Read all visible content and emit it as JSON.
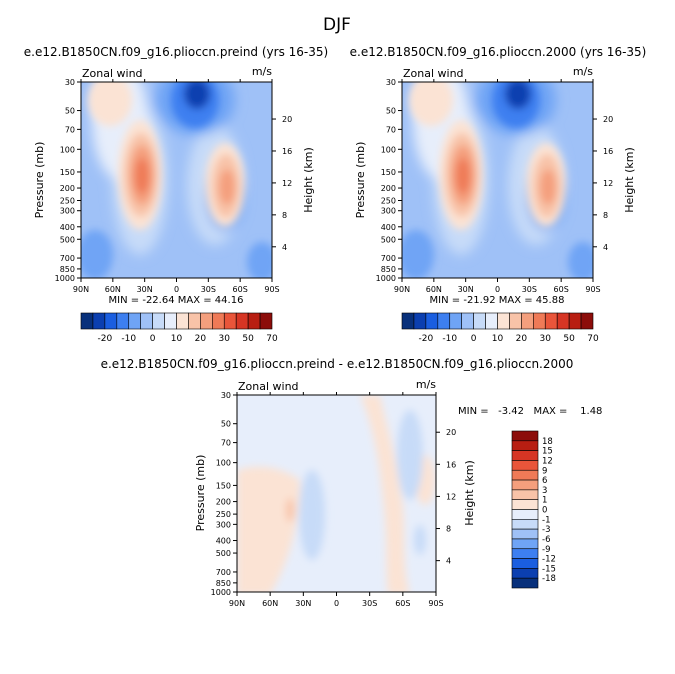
{
  "page": {
    "title": "DJF"
  },
  "palette_main": [
    "#08307b",
    "#0b3fb0",
    "#1a5ee0",
    "#3d7ff0",
    "#6fa4f5",
    "#9fc1f7",
    "#c7dbf8",
    "#e7eefb",
    "#fbe3d4",
    "#f8c3a8",
    "#f49f7d",
    "#ef7a57",
    "#e9553a",
    "#d63524",
    "#b81e12",
    "#8c0d0a"
  ],
  "palette_diff": [
    "#08307b",
    "#0b3fb0",
    "#1a5ee0",
    "#3d7ff0",
    "#6fa4f5",
    "#9fc1f7",
    "#c7dbf8",
    "#e7eefb",
    "#fbe3d4",
    "#f8c3a8",
    "#f49f7d",
    "#ef7a57",
    "#e9553a",
    "#d63524",
    "#b81e12",
    "#8c0d0a"
  ],
  "panels": [
    {
      "title": "e.e12.B1850CN.f09_g16.plioccn.preind (yrs 16-35)",
      "left_label": "Zonal wind",
      "right_label": "m/s",
      "stats": "MIN = -22.64   MAX = 44.16",
      "ylabel": "Pressure (mb)",
      "y2label": "Height (km)"
    },
    {
      "title": "e.e12.B1850CN.f09_g16.plioccn.2000 (yrs 16-35)",
      "left_label": "Zonal wind",
      "right_label": "m/s",
      "stats": "MIN = -21.92   MAX = 45.88",
      "ylabel": "Pressure (mb)",
      "y2label": "Height (km)"
    },
    {
      "title": "e.e12.B1850CN.f09_g16.plioccn.preind - e.e12.B1850CN.f09_g16.plioccn.2000",
      "left_label": "Zonal wind",
      "right_label": "m/s",
      "stats": "MIN =   -3.42   MAX =    1.48",
      "ylabel": "Pressure (mb)",
      "y2label": "Height (km)"
    }
  ],
  "chart_data": [
    {
      "type": "heatmap",
      "title": "e.e12.B1850CN.f09_g16.plioccn.preind (yrs 16-35)",
      "subtitle": "Zonal wind",
      "units": "m/s",
      "xlabel": "",
      "ylabel": "Pressure (mb)",
      "y2label": "Height (km)",
      "x_ticks": [
        "90N",
        "60N",
        "30N",
        "0",
        "30S",
        "60S",
        "90S"
      ],
      "y_ticks": [
        "30",
        "50",
        "70",
        "100",
        "150",
        "200",
        "250",
        "300",
        "400",
        "500",
        "700",
        "850",
        "1000"
      ],
      "y2_ticks": [
        "4",
        "8",
        "12",
        "16",
        "20"
      ],
      "min": -22.64,
      "max": 44.16,
      "levels": [
        -25,
        -20,
        -15,
        -10,
        -5,
        0,
        5,
        10,
        15,
        20,
        25,
        30,
        40,
        50,
        60,
        70
      ],
      "colorbar_labels": [
        "-20",
        "-10",
        "0",
        "10",
        "20",
        "30",
        "50",
        "70"
      ]
    },
    {
      "type": "heatmap",
      "title": "e.e12.B1850CN.f09_g16.plioccn.2000 (yrs 16-35)",
      "subtitle": "Zonal wind",
      "units": "m/s",
      "xlabel": "",
      "ylabel": "Pressure (mb)",
      "y2label": "Height (km)",
      "x_ticks": [
        "90N",
        "60N",
        "30N",
        "0",
        "30S",
        "60S",
        "90S"
      ],
      "y_ticks": [
        "30",
        "50",
        "70",
        "100",
        "150",
        "200",
        "250",
        "300",
        "400",
        "500",
        "700",
        "850",
        "1000"
      ],
      "y2_ticks": [
        "4",
        "8",
        "12",
        "16",
        "20"
      ],
      "min": -21.92,
      "max": 45.88,
      "levels": [
        -25,
        -20,
        -15,
        -10,
        -5,
        0,
        5,
        10,
        15,
        20,
        25,
        30,
        40,
        50,
        60,
        70
      ],
      "colorbar_labels": [
        "-20",
        "-10",
        "0",
        "10",
        "20",
        "30",
        "50",
        "70"
      ]
    },
    {
      "type": "heatmap",
      "title": "e.e12.B1850CN.f09_g16.plioccn.preind - e.e12.B1850CN.f09_g16.plioccn.2000",
      "subtitle": "Zonal wind",
      "units": "m/s",
      "xlabel": "",
      "ylabel": "Pressure (mb)",
      "y2label": "Height (km)",
      "x_ticks": [
        "90N",
        "60N",
        "30N",
        "0",
        "30S",
        "60S",
        "90S"
      ],
      "y_ticks": [
        "30",
        "50",
        "70",
        "100",
        "150",
        "200",
        "250",
        "300",
        "400",
        "500",
        "700",
        "850",
        "1000"
      ],
      "y2_ticks": [
        "4",
        "8",
        "12",
        "16",
        "20"
      ],
      "min": -3.42,
      "max": 1.48,
      "levels": [
        -18,
        -15,
        -12,
        -9,
        -6,
        -3,
        -1,
        0,
        1,
        3,
        6,
        9,
        12,
        15,
        18
      ],
      "colorbar_labels": [
        "18",
        "15",
        "12",
        "9",
        "6",
        "3",
        "1",
        "0",
        "-1",
        "-3",
        "-6",
        "-9",
        "-12",
        "-15",
        "-18"
      ]
    }
  ]
}
